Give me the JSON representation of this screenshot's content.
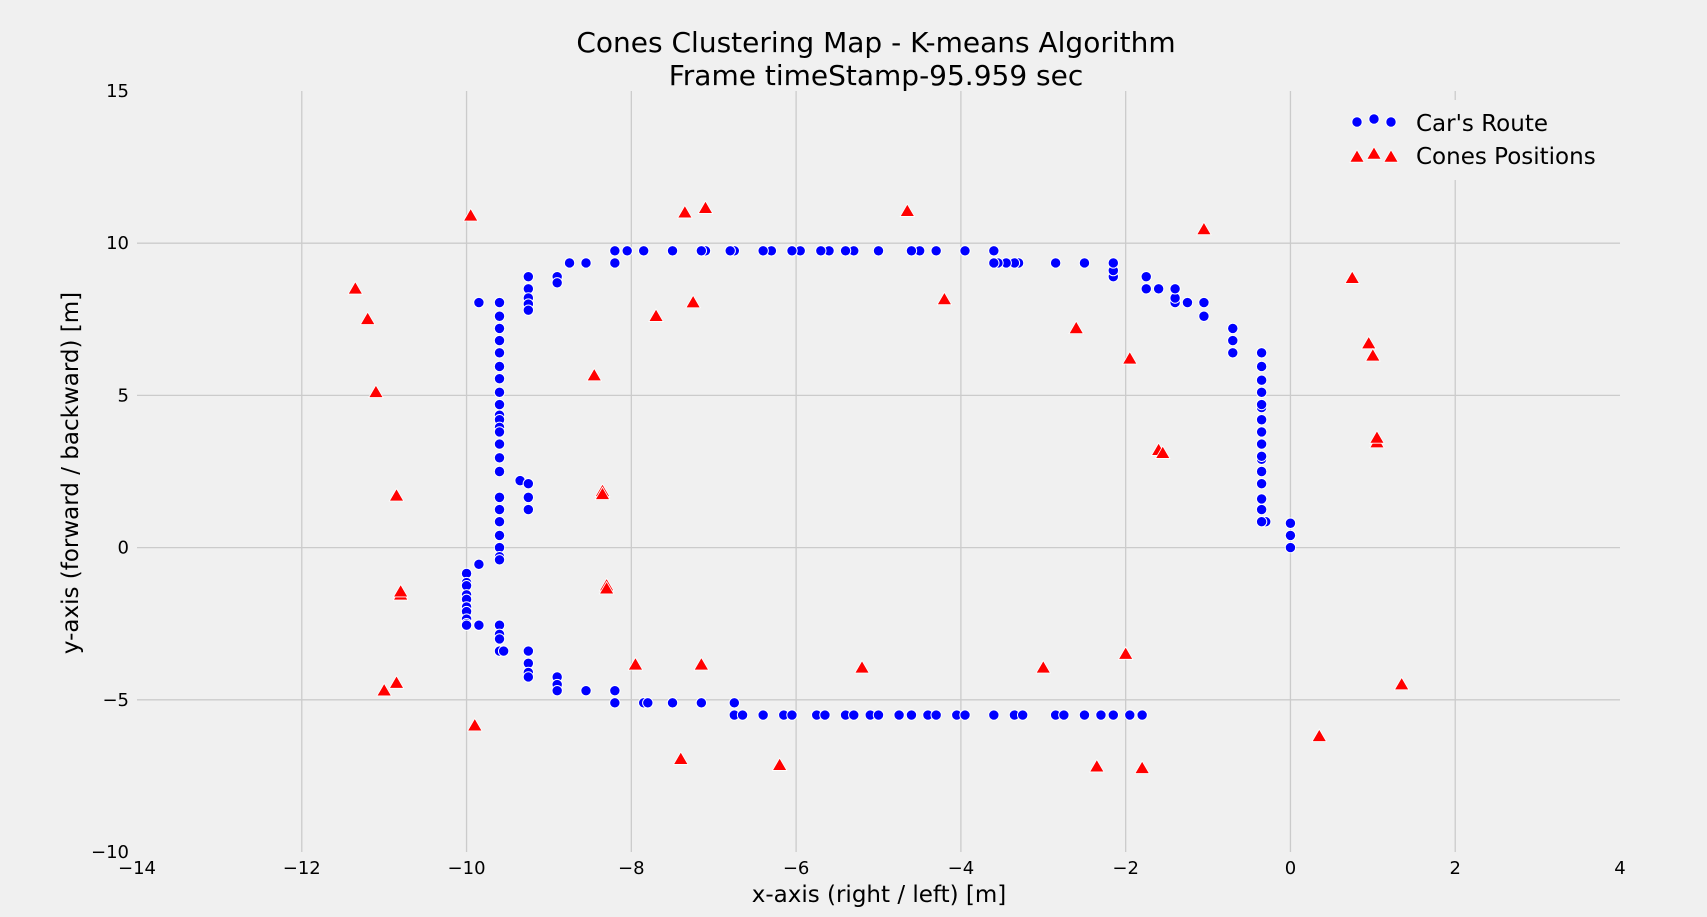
{
  "chart_data": {
    "type": "scatter",
    "title": "Cones Clustering Map - K-means Algorithm",
    "subtitle": "Frame timeStamp-95.959 sec",
    "xlabel": "x-axis (right / left) [m]",
    "ylabel": "y-axis (forward / backward) [m]",
    "xlim": [
      -14,
      4
    ],
    "ylim": [
      -10,
      15
    ],
    "xticks": [
      -14,
      -12,
      -10,
      -8,
      -6,
      -4,
      -2,
      0,
      2,
      4
    ],
    "yticks": [
      -10,
      -5,
      0,
      5,
      10,
      15
    ],
    "xtick_labels": [
      "−14",
      "−12",
      "−10",
      "−8",
      "−6",
      "−4",
      "−2",
      "0",
      "2",
      "4"
    ],
    "ytick_labels": [
      "−10",
      "−5",
      "0",
      "5",
      "10",
      "15"
    ],
    "grid": true,
    "legend_position": "top-right",
    "colors": {
      "background": "#f0f0f0",
      "grid": "#cbcbcb",
      "route": "#0000ff",
      "cones": "#ff0000"
    },
    "series": [
      {
        "name": "Car's Route",
        "marker": "circle",
        "color": "#0000ff",
        "points": [
          [
            0,
            0
          ],
          [
            0,
            0.4
          ],
          [
            0,
            0.8
          ],
          [
            -0.3,
            0.85
          ],
          [
            -0.35,
            0.85
          ],
          [
            -0.35,
            1.25
          ],
          [
            -0.35,
            1.6
          ],
          [
            -0.35,
            2.1
          ],
          [
            -0.35,
            2.5
          ],
          [
            -0.35,
            2.9
          ],
          [
            -0.35,
            3.0
          ],
          [
            -0.35,
            3.4
          ],
          [
            -0.35,
            3.8
          ],
          [
            -0.35,
            4.2
          ],
          [
            -0.35,
            4.6
          ],
          [
            -0.35,
            4.7
          ],
          [
            -0.35,
            5.1
          ],
          [
            -0.35,
            5.5
          ],
          [
            -0.35,
            5.95
          ],
          [
            -0.35,
            6.4
          ],
          [
            -0.7,
            6.4
          ],
          [
            -0.7,
            6.8
          ],
          [
            -0.7,
            7.2
          ],
          [
            -1.05,
            7.6
          ],
          [
            -1.05,
            8.05
          ],
          [
            -1.25,
            8.05
          ],
          [
            -1.4,
            8.05
          ],
          [
            -1.4,
            8.2
          ],
          [
            -1.4,
            8.5
          ],
          [
            -1.6,
            8.5
          ],
          [
            -1.75,
            8.5
          ],
          [
            -1.75,
            8.9
          ],
          [
            -2.15,
            8.9
          ],
          [
            -2.15,
            9.1
          ],
          [
            -2.15,
            9.35
          ],
          [
            -2.5,
            9.35
          ],
          [
            -2.85,
            9.35
          ],
          [
            -3.3,
            9.35
          ],
          [
            -3.35,
            9.35
          ],
          [
            -3.45,
            9.35
          ],
          [
            -3.55,
            9.35
          ],
          [
            -3.6,
            9.35
          ],
          [
            -3.6,
            9.75
          ],
          [
            -3.95,
            9.75
          ],
          [
            -4.3,
            9.75
          ],
          [
            -4.5,
            9.75
          ],
          [
            -4.6,
            9.75
          ],
          [
            -5,
            9.75
          ],
          [
            -5.3,
            9.75
          ],
          [
            -5.4,
            9.75
          ],
          [
            -5.6,
            9.75
          ],
          [
            -5.7,
            9.75
          ],
          [
            -5.95,
            9.75
          ],
          [
            -6.05,
            9.75
          ],
          [
            -6.3,
            9.75
          ],
          [
            -6.4,
            9.75
          ],
          [
            -6.75,
            9.75
          ],
          [
            -6.8,
            9.75
          ],
          [
            -7.1,
            9.75
          ],
          [
            -7.15,
            9.75
          ],
          [
            -7.5,
            9.75
          ],
          [
            -7.85,
            9.75
          ],
          [
            -8.05,
            9.75
          ],
          [
            -8.2,
            9.75
          ],
          [
            -8.2,
            9.35
          ],
          [
            -8.55,
            9.35
          ],
          [
            -8.75,
            9.35
          ],
          [
            -8.9,
            8.9
          ],
          [
            -8.9,
            8.7
          ],
          [
            -9.25,
            8.9
          ],
          [
            -9.25,
            8.5
          ],
          [
            -9.25,
            8.2
          ],
          [
            -9.25,
            8.0
          ],
          [
            -9.25,
            7.8
          ],
          [
            -9.6,
            8.05
          ],
          [
            -9.85,
            8.05
          ],
          [
            -9.6,
            7.6
          ],
          [
            -9.6,
            7.2
          ],
          [
            -9.6,
            6.8
          ],
          [
            -9.6,
            6.4
          ],
          [
            -9.6,
            5.95
          ],
          [
            -9.6,
            5.55
          ],
          [
            -9.6,
            5.1
          ],
          [
            -9.6,
            4.7
          ],
          [
            -9.6,
            4.35
          ],
          [
            -9.6,
            4.2
          ],
          [
            -9.6,
            3.95
          ],
          [
            -9.6,
            3.8
          ],
          [
            -9.6,
            3.4
          ],
          [
            -9.6,
            2.95
          ],
          [
            -9.6,
            2.5
          ],
          [
            -9.35,
            2.2
          ],
          [
            -9.25,
            2.1
          ],
          [
            -9.25,
            1.65
          ],
          [
            -9.25,
            1.25
          ],
          [
            -9.6,
            1.65
          ],
          [
            -9.6,
            1.25
          ],
          [
            -9.6,
            0.85
          ],
          [
            -9.6,
            0.4
          ],
          [
            -9.6,
            0
          ],
          [
            -9.6,
            -0.3
          ],
          [
            -9.6,
            -0.4
          ],
          [
            -9.85,
            -0.55
          ],
          [
            -10,
            -0.85
          ],
          [
            -10,
            -1.15
          ],
          [
            -10,
            -1.25
          ],
          [
            -10,
            -1.55
          ],
          [
            -10,
            -1.7
          ],
          [
            -10,
            -1.95
          ],
          [
            -10,
            -2.1
          ],
          [
            -10,
            -2.35
          ],
          [
            -10,
            -2.5
          ],
          [
            -10,
            -2.55
          ],
          [
            -9.85,
            -2.55
          ],
          [
            -9.6,
            -2.55
          ],
          [
            -9.6,
            -2.85
          ],
          [
            -9.6,
            -3.0
          ],
          [
            -9.6,
            -3.4
          ],
          [
            -9.55,
            -3.4
          ],
          [
            -9.25,
            -3.4
          ],
          [
            -9.25,
            -3.8
          ],
          [
            -9.25,
            -4.1
          ],
          [
            -9.25,
            -4.25
          ],
          [
            -8.9,
            -4.25
          ],
          [
            -8.9,
            -4.5
          ],
          [
            -8.9,
            -4.7
          ],
          [
            -8.55,
            -4.7
          ],
          [
            -8.2,
            -4.7
          ],
          [
            -8.2,
            -5.1
          ],
          [
            -7.85,
            -5.1
          ],
          [
            -7.8,
            -5.1
          ],
          [
            -7.5,
            -5.1
          ],
          [
            -7.15,
            -5.1
          ],
          [
            -6.75,
            -5.1
          ],
          [
            -6.75,
            -5.5
          ],
          [
            -6.65,
            -5.5
          ],
          [
            -6.4,
            -5.5
          ],
          [
            -6.15,
            -5.5
          ],
          [
            -6.05,
            -5.5
          ],
          [
            -5.75,
            -5.5
          ],
          [
            -5.65,
            -5.5
          ],
          [
            -5.4,
            -5.5
          ],
          [
            -5.3,
            -5.5
          ],
          [
            -5.1,
            -5.5
          ],
          [
            -5,
            -5.5
          ],
          [
            -4.75,
            -5.5
          ],
          [
            -4.6,
            -5.5
          ],
          [
            -4.4,
            -5.5
          ],
          [
            -4.3,
            -5.5
          ],
          [
            -4.05,
            -5.5
          ],
          [
            -3.95,
            -5.5
          ],
          [
            -3.6,
            -5.5
          ],
          [
            -3.35,
            -5.5
          ],
          [
            -3.25,
            -5.5
          ],
          [
            -2.85,
            -5.5
          ],
          [
            -2.75,
            -5.5
          ],
          [
            -2.5,
            -5.5
          ],
          [
            -2.3,
            -5.5
          ],
          [
            -2.15,
            -5.5
          ],
          [
            -1.95,
            -5.5
          ],
          [
            -1.8,
            -5.5
          ]
        ]
      },
      {
        "name": "Cones Positions",
        "marker": "triangle",
        "color": "#ff0000",
        "points": [
          [
            -9.95,
            10.9
          ],
          [
            -7.35,
            11.0
          ],
          [
            -7.1,
            11.15
          ],
          [
            -4.65,
            11.05
          ],
          [
            -1.05,
            10.45
          ],
          [
            -11.35,
            8.5
          ],
          [
            -11.2,
            7.5
          ],
          [
            -11.1,
            5.1
          ],
          [
            -7.7,
            7.6
          ],
          [
            -7.25,
            8.05
          ],
          [
            -4.2,
            8.15
          ],
          [
            -2.6,
            7.2
          ],
          [
            -1.95,
            6.2
          ],
          [
            0.75,
            8.85
          ],
          [
            0.95,
            6.7
          ],
          [
            1.0,
            6.3
          ],
          [
            -8.45,
            5.65
          ],
          [
            -8.35,
            1.85
          ],
          [
            -8.35,
            1.75
          ],
          [
            -10.85,
            1.7
          ],
          [
            -1.6,
            3.2
          ],
          [
            -1.55,
            3.1
          ],
          [
            1.05,
            3.45
          ],
          [
            1.05,
            3.6
          ],
          [
            -10.8,
            -1.55
          ],
          [
            -10.8,
            -1.45
          ],
          [
            -8.3,
            -1.25
          ],
          [
            -8.3,
            -1.35
          ],
          [
            -7.95,
            -3.85
          ],
          [
            -7.15,
            -3.85
          ],
          [
            -5.2,
            -3.95
          ],
          [
            -3,
            -3.95
          ],
          [
            -2,
            -3.5
          ],
          [
            1.35,
            -4.5
          ],
          [
            -10.85,
            -4.45
          ],
          [
            -11,
            -4.7
          ],
          [
            -9.9,
            -5.85
          ],
          [
            -7.4,
            -6.95
          ],
          [
            -6.2,
            -7.15
          ],
          [
            -2.35,
            -7.2
          ],
          [
            -1.8,
            -7.25
          ],
          [
            0.35,
            -6.2
          ]
        ]
      }
    ]
  }
}
